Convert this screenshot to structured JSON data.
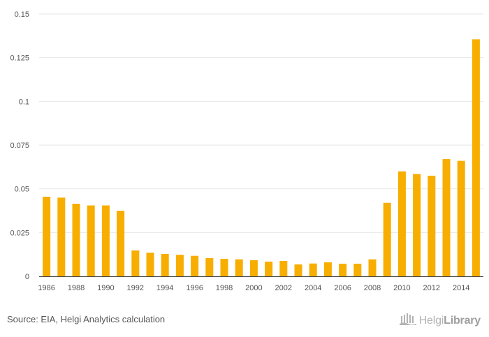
{
  "colors": {
    "bar": "#F7AE00",
    "grid": "#e6e6e6",
    "axis": "#444444",
    "text": "#555555",
    "logo": "#b3b3b3"
  },
  "source_text": "Source: EIA, Helgi Analytics calculation",
  "logo": {
    "name_light": "Helgi",
    "name_bold": "Library",
    "icon": "library-building-icon"
  },
  "chart_data": {
    "type": "bar",
    "title": "",
    "xlabel": "",
    "ylabel": "",
    "ylim": [
      0,
      0.15
    ],
    "y_ticks": [
      "0",
      "0.025",
      "0.05",
      "0.075",
      "0.1",
      "0.125",
      "0.15"
    ],
    "y_tick_values": [
      0,
      0.025,
      0.05,
      0.075,
      0.1,
      0.125,
      0.15
    ],
    "categories": [
      "1986",
      "1987",
      "1988",
      "1989",
      "1990",
      "1991",
      "1992",
      "1993",
      "1994",
      "1995",
      "1996",
      "1997",
      "1998",
      "1999",
      "2000",
      "2001",
      "2002",
      "2003",
      "2004",
      "2005",
      "2006",
      "2007",
      "2008",
      "2009",
      "2010",
      "2011",
      "2012",
      "2013",
      "2014",
      "2015"
    ],
    "x_tick_labels": [
      "1986",
      "",
      "1988",
      "",
      "1990",
      "",
      "1992",
      "",
      "1994",
      "",
      "1996",
      "",
      "1998",
      "",
      "2000",
      "",
      "2002",
      "",
      "2004",
      "",
      "2006",
      "",
      "2008",
      "",
      "2010",
      "",
      "2012",
      "",
      "2014",
      ""
    ],
    "values": [
      0.0455,
      0.045,
      0.0415,
      0.0405,
      0.0405,
      0.0375,
      0.0148,
      0.0135,
      0.0128,
      0.0123,
      0.0117,
      0.0104,
      0.01,
      0.0097,
      0.0092,
      0.0084,
      0.0088,
      0.0068,
      0.0073,
      0.008,
      0.0072,
      0.0072,
      0.0097,
      0.042,
      0.06,
      0.0585,
      0.0575,
      0.067,
      0.066,
      0.1355
    ]
  }
}
